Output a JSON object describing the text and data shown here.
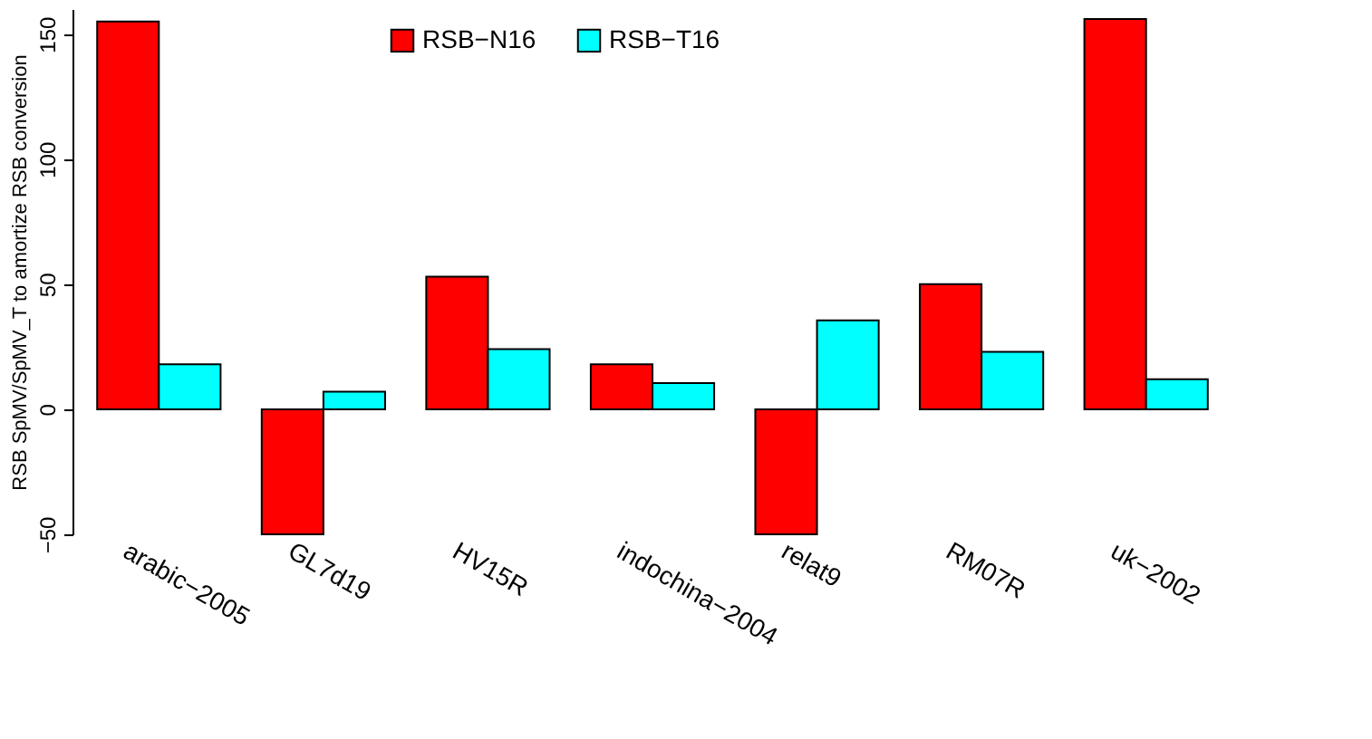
{
  "chart_data": {
    "type": "bar",
    "ylabel": "RSB SpMV/SpMV_T to amortize RSB conversion",
    "categories": [
      "arabic−2005",
      "GL7d19",
      "HV15R",
      "indochina−2004",
      "relat9",
      "RM07R",
      "uk−2002"
    ],
    "series": [
      {
        "name": "RSB−N16",
        "color": "#ff0000",
        "values": [
          155,
          -50,
          53,
          18,
          -50,
          50,
          156
        ]
      },
      {
        "name": "RSB−T16",
        "color": "#00ffff",
        "values": [
          18,
          7,
          24,
          10.5,
          35.5,
          23,
          12
        ]
      }
    ],
    "ylim": [
      -50,
      160
    ],
    "yticks": [
      -50,
      0,
      50,
      100,
      150
    ],
    "grid": false,
    "legend": "top left"
  }
}
